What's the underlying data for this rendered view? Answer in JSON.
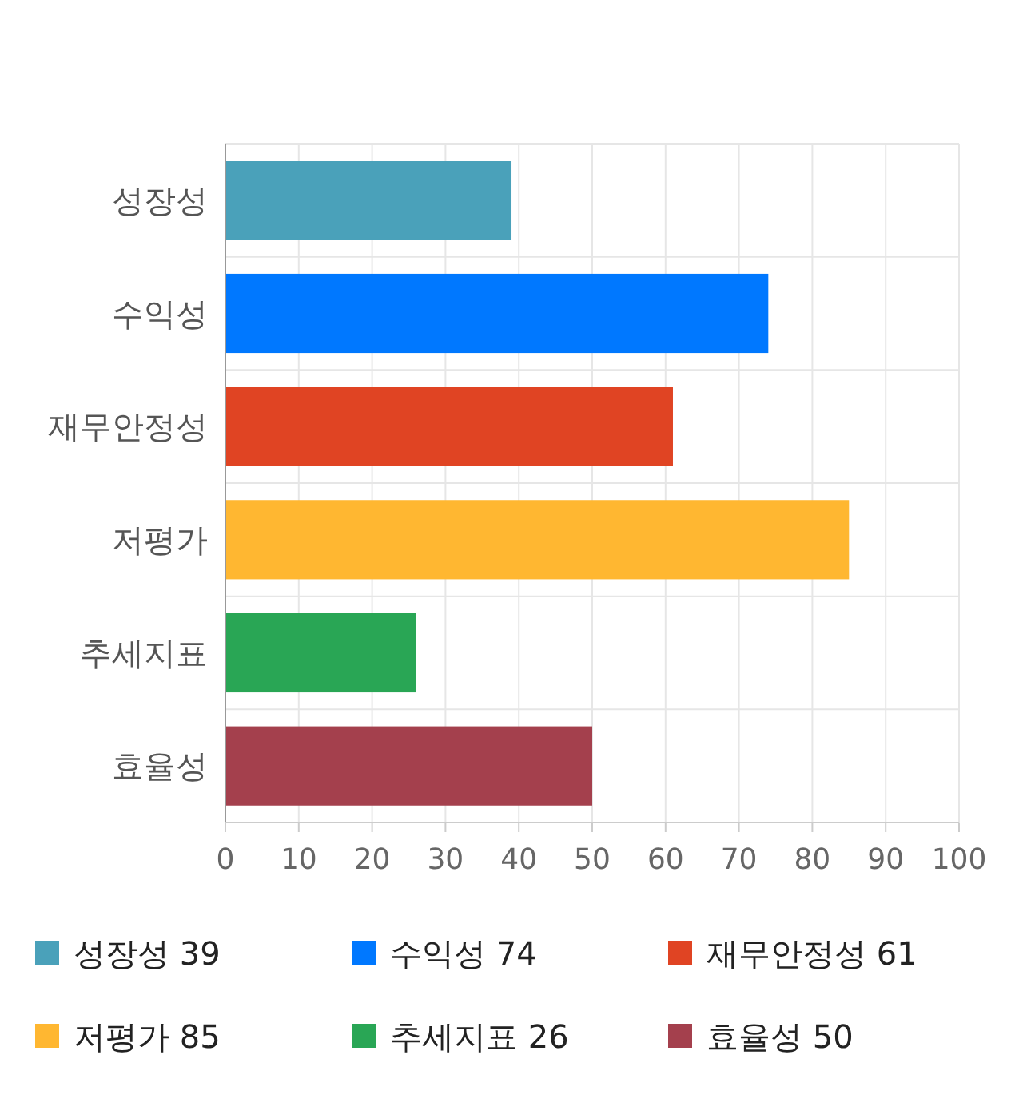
{
  "chart_data": {
    "type": "bar",
    "orientation": "horizontal",
    "stacked": true,
    "categories": [
      "성장성",
      "수익성",
      "재무안정성",
      "저평가",
      "추세지표",
      "효율성"
    ],
    "series": [
      {
        "name": "성장성 39",
        "color": "#4aa1ba",
        "values": [
          39,
          null,
          null,
          null,
          null,
          null
        ]
      },
      {
        "name": "수익성 74",
        "color": "#0078ff",
        "values": [
          null,
          74,
          null,
          null,
          null,
          null
        ]
      },
      {
        "name": "재무안정성 61",
        "color": "#e04423",
        "values": [
          null,
          null,
          61,
          null,
          null,
          null
        ]
      },
      {
        "name": "저평가 85",
        "color": "#ffb731",
        "values": [
          null,
          null,
          null,
          85,
          null,
          null
        ]
      },
      {
        "name": "추세지표 26",
        "color": "#29a655",
        "values": [
          null,
          null,
          null,
          null,
          26,
          null
        ]
      },
      {
        "name": "효율성 50",
        "color": "#a4404d",
        "values": [
          null,
          null,
          null,
          null,
          null,
          50
        ]
      }
    ],
    "xlim": [
      0,
      100
    ],
    "xticks": [
      0,
      10,
      20,
      30,
      40,
      50,
      60,
      70,
      80,
      90,
      100
    ],
    "grid": true,
    "legend": "bottom"
  }
}
